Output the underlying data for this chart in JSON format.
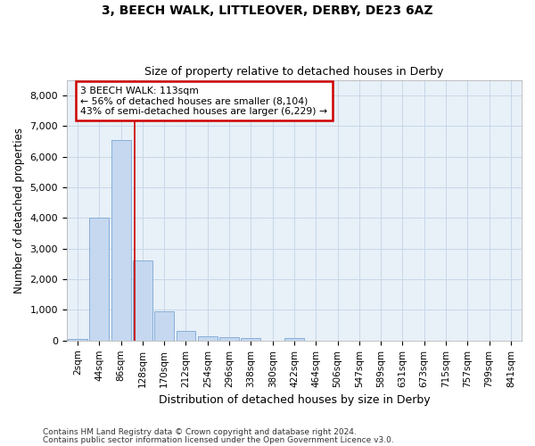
{
  "title1": "3, BEECH WALK, LITTLEOVER, DERBY, DE23 6AZ",
  "title2": "Size of property relative to detached houses in Derby",
  "xlabel": "Distribution of detached houses by size in Derby",
  "ylabel": "Number of detached properties",
  "bar_labels": [
    "2sqm",
    "44sqm",
    "86sqm",
    "128sqm",
    "170sqm",
    "212sqm",
    "254sqm",
    "296sqm",
    "338sqm",
    "380sqm",
    "422sqm",
    "464sqm",
    "506sqm",
    "547sqm",
    "589sqm",
    "631sqm",
    "673sqm",
    "715sqm",
    "757sqm",
    "799sqm",
    "841sqm"
  ],
  "bar_values": [
    60,
    4000,
    6550,
    2600,
    950,
    320,
    130,
    100,
    75,
    0,
    75,
    0,
    0,
    0,
    0,
    0,
    0,
    0,
    0,
    0,
    0
  ],
  "bar_color": "#c5d8f0",
  "bar_edge_color": "#88afd8",
  "grid_color": "#c8d8e8",
  "background_color": "#e8f0f8",
  "property_line_color": "#cc0000",
  "annotation_line0": "3 BEECH WALK: 113sqm",
  "annotation_line1": "← 56% of detached houses are smaller (8,104)",
  "annotation_line2": "43% of semi-detached houses are larger (6,229) →",
  "annotation_box_color": "#cc0000",
  "ylim": [
    0,
    8500
  ],
  "yticks": [
    0,
    1000,
    2000,
    3000,
    4000,
    5000,
    6000,
    7000,
    8000
  ],
  "footnote1": "Contains HM Land Registry data © Crown copyright and database right 2024.",
  "footnote2": "Contains public sector information licensed under the Open Government Licence v3.0."
}
